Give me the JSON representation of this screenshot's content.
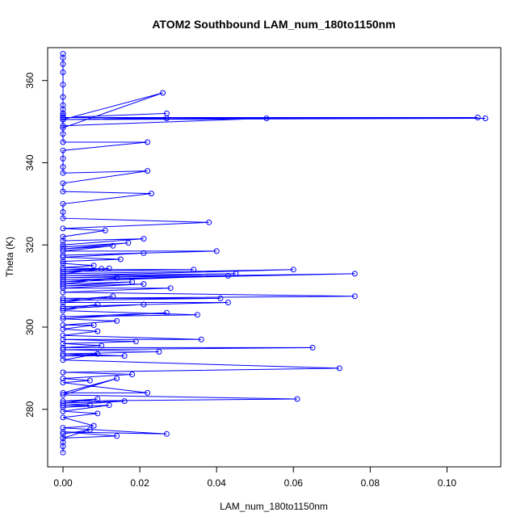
{
  "chart_data": {
    "type": "line",
    "title": "ATOM2 Southbound LAM_num_180to1150nm",
    "xlabel": "LAM_num_180to1150nm",
    "ylabel": "Theta (K)",
    "xlim": [
      -0.004,
      0.114
    ],
    "ylim": [
      266,
      368
    ],
    "xticks": [
      0.0,
      0.02,
      0.04,
      0.06,
      0.08,
      0.1
    ],
    "xtick_labels": [
      "0.00",
      "0.02",
      "0.04",
      "0.06",
      "0.08",
      "0.10"
    ],
    "yticks": [
      280,
      300,
      320,
      340,
      360
    ],
    "ytick_labels": [
      "280",
      "300",
      "320",
      "340",
      "360"
    ],
    "grid": false,
    "legend": "none",
    "series_color": "#0000ff",
    "marker": "open-circle",
    "series": [
      {
        "x": [
          0.0,
          0.0,
          0.0,
          0.0,
          0.0,
          0.0,
          0.0,
          0.0,
          0.0,
          0.0,
          0.0,
          0.0,
          0.026,
          0.0,
          0.0,
          0.0,
          0.0,
          0.027,
          0.0,
          0.0,
          0.027,
          0.0,
          0.108,
          0.0,
          0.11,
          0.0,
          0.053,
          0.0,
          0.0,
          0.0,
          0.022,
          0.0,
          0.0,
          0.0,
          0.0,
          0.022,
          0.0,
          0.0,
          0.023,
          0.0,
          0.0,
          0.0,
          0.038,
          0.0,
          0.011,
          0.0,
          0.0,
          0.021,
          0.0,
          0.0,
          0.017,
          0.0,
          0.013,
          0.0,
          0.04,
          0.0,
          0.021,
          0.0,
          0.015,
          0.0,
          0.0,
          0.008,
          0.0,
          0.01,
          0.0,
          0.034,
          0.0,
          0.012,
          0.0,
          0.06,
          0.0,
          0.045,
          0.0,
          0.076,
          0.0,
          0.043,
          0.0,
          0.014,
          0.0,
          0.018,
          0.0,
          0.021,
          0.0,
          0.028,
          0.0,
          0.076,
          0.0,
          0.041,
          0.0,
          0.013,
          0.0,
          0.043,
          0.0,
          0.021,
          0.0,
          0.009,
          0.0,
          0.035,
          0.0,
          0.027,
          0.0,
          0.014,
          0.0,
          0.008,
          0.0,
          0.009,
          0.0,
          0.036,
          0.0,
          0.019,
          0.0,
          0.01,
          0.0,
          0.065,
          0.0,
          0.025,
          0.0,
          0.016,
          0.0,
          0.009,
          0.0,
          0.072,
          0.0,
          0.018,
          0.0,
          0.007,
          0.0,
          0.022,
          0.0,
          0.014,
          0.0,
          0.061,
          0.0,
          0.009,
          0.0,
          0.016,
          0.0,
          0.007,
          0.0,
          0.012,
          0.0,
          0.009,
          0.0,
          0.008,
          0.0,
          0.027,
          0.0,
          0.014,
          0.0,
          0.007,
          0.0,
          0.0,
          0.0,
          0.0,
          0.0
        ],
        "y": [
          366.5,
          365.5,
          364.0,
          362.0,
          359.0,
          356.0,
          354.0,
          353.0,
          352.0,
          351.5,
          351.0,
          350.5,
          357.0,
          348.5,
          351.0,
          352.0,
          351.0,
          352.0,
          351.0,
          350.5,
          350.8,
          351.0,
          351.0,
          350.5,
          350.8,
          351.0,
          350.8,
          349.0,
          347.0,
          345.0,
          345.0,
          343.0,
          341.0,
          339.0,
          337.5,
          338.0,
          335.0,
          333.0,
          332.5,
          330.0,
          328.0,
          326.5,
          325.5,
          324.0,
          323.5,
          322.0,
          321.0,
          321.5,
          320.0,
          319.5,
          320.5,
          319.0,
          319.8,
          318.5,
          318.5,
          317.5,
          318.0,
          317.0,
          316.5,
          316.0,
          315.5,
          315.0,
          314.5,
          314.2,
          314.0,
          314.0,
          313.5,
          314.3,
          313.0,
          314.0,
          312.5,
          313.0,
          312.0,
          313.0,
          311.5,
          312.5,
          311.0,
          312.0,
          310.5,
          311.0,
          310.0,
          310.5,
          309.5,
          309.5,
          308.5,
          307.5,
          307.0,
          307.0,
          306.5,
          307.5,
          306.0,
          306.0,
          305.0,
          305.5,
          304.5,
          305.5,
          304.0,
          303.0,
          302.5,
          303.5,
          302.0,
          301.5,
          300.5,
          300.5,
          299.5,
          299.0,
          298.0,
          297.0,
          297.0,
          296.5,
          296.0,
          295.5,
          295.0,
          295.0,
          294.5,
          294.0,
          293.5,
          293.0,
          293.0,
          293.5,
          292.0,
          290.0,
          289.0,
          288.5,
          287.5,
          287.0,
          286.5,
          284.0,
          284.0,
          287.5,
          283.5,
          282.5,
          282.0,
          282.5,
          281.5,
          282.0,
          281.0,
          281.0,
          280.5,
          281.0,
          279.5,
          279.0,
          278.0,
          276.0,
          275.5,
          274.0,
          274.5,
          273.5,
          273.0,
          275.0,
          274.0,
          273.0,
          272.0,
          271.0,
          269.5
        ]
      }
    ]
  }
}
